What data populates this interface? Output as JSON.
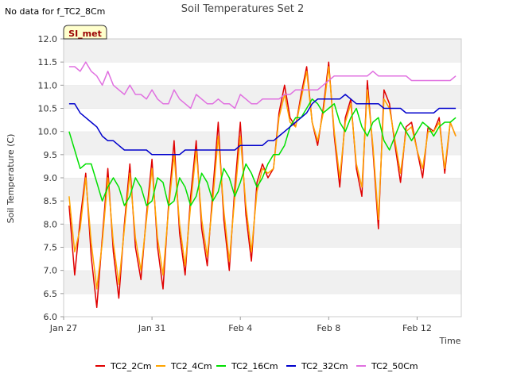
{
  "notice": "No data for f_TC2_8Cm",
  "badge": "SI_met",
  "chart_data": {
    "type": "line",
    "title": "Soil Temperatures Set 2",
    "xlabel": "Time",
    "ylabel": "Soil Temperature (C)",
    "xlim": [
      "2024-01-27",
      "2024-02-14"
    ],
    "ylim": [
      6.0,
      12.0
    ],
    "yticks": [
      "6.0",
      "6.5",
      "7.0",
      "7.5",
      "8.0",
      "8.5",
      "9.0",
      "9.5",
      "10.0",
      "10.5",
      "11.0",
      "11.5",
      "12.0"
    ],
    "xticks": [
      {
        "label": "Jan 27",
        "date": "2024-01-27"
      },
      {
        "label": "Jan 31",
        "date": "2024-01-31"
      },
      {
        "label": "Feb 4",
        "date": "2024-02-04"
      },
      {
        "label": "Feb 8",
        "date": "2024-02-08"
      },
      {
        "label": "Feb 12",
        "date": "2024-02-12"
      }
    ],
    "grid": "horizontal bands",
    "legend_position": "bottom",
    "colors": {
      "TC2_2Cm": "#e00000",
      "TC2_4Cm": "#ffa500",
      "TC2_16Cm": "#00e000",
      "TC2_32Cm": "#0000cc",
      "TC2_50Cm": "#e070e0"
    },
    "x": [
      "2024-01-27 06:00",
      "2024-01-27 12:00",
      "2024-01-27 18:00",
      "2024-01-28 00:00",
      "2024-01-28 06:00",
      "2024-01-28 12:00",
      "2024-01-28 18:00",
      "2024-01-29 00:00",
      "2024-01-29 06:00",
      "2024-01-29 12:00",
      "2024-01-29 18:00",
      "2024-01-30 00:00",
      "2024-01-30 06:00",
      "2024-01-30 12:00",
      "2024-01-30 18:00",
      "2024-01-31 00:00",
      "2024-01-31 06:00",
      "2024-01-31 12:00",
      "2024-01-31 18:00",
      "2024-02-01 00:00",
      "2024-02-01 06:00",
      "2024-02-01 12:00",
      "2024-02-01 18:00",
      "2024-02-02 00:00",
      "2024-02-02 06:00",
      "2024-02-02 12:00",
      "2024-02-02 18:00",
      "2024-02-03 00:00",
      "2024-02-03 06:00",
      "2024-02-03 12:00",
      "2024-02-03 18:00",
      "2024-02-04 00:00",
      "2024-02-04 06:00",
      "2024-02-04 12:00",
      "2024-02-04 18:00",
      "2024-02-05 00:00",
      "2024-02-05 06:00",
      "2024-02-05 12:00",
      "2024-02-05 18:00",
      "2024-02-06 00:00",
      "2024-02-06 06:00",
      "2024-02-06 12:00",
      "2024-02-06 18:00",
      "2024-02-07 00:00",
      "2024-02-07 06:00",
      "2024-02-07 12:00",
      "2024-02-07 18:00",
      "2024-02-08 00:00",
      "2024-02-08 06:00",
      "2024-02-08 12:00",
      "2024-02-08 18:00",
      "2024-02-09 00:00",
      "2024-02-09 06:00",
      "2024-02-09 12:00",
      "2024-02-09 18:00",
      "2024-02-10 00:00",
      "2024-02-10 06:00",
      "2024-02-10 12:00",
      "2024-02-10 18:00",
      "2024-02-11 00:00",
      "2024-02-11 06:00",
      "2024-02-11 12:00",
      "2024-02-11 18:00",
      "2024-02-12 00:00",
      "2024-02-12 06:00",
      "2024-02-12 12:00",
      "2024-02-12 18:00",
      "2024-02-13 00:00",
      "2024-02-13 06:00",
      "2024-02-13 12:00",
      "2024-02-13 18:00"
    ],
    "series": [
      {
        "name": "TC2_2Cm",
        "values": [
          8.4,
          6.9,
          8.1,
          9.1,
          7.3,
          6.2,
          7.7,
          9.2,
          7.4,
          6.4,
          8.0,
          9.3,
          7.5,
          6.8,
          8.2,
          9.4,
          7.5,
          6.6,
          8.4,
          9.8,
          7.8,
          6.9,
          8.6,
          9.8,
          7.9,
          7.1,
          8.7,
          10.2,
          8.1,
          7.0,
          8.8,
          10.2,
          8.2,
          7.2,
          8.9,
          9.3,
          9.0,
          9.2,
          10.4,
          11.0,
          10.3,
          10.1,
          10.8,
          11.4,
          10.2,
          9.7,
          10.5,
          11.5,
          9.9,
          8.8,
          10.3,
          10.7,
          9.2,
          8.6,
          11.1,
          9.6,
          7.9,
          10.9,
          10.6,
          9.7,
          8.9,
          10.1,
          10.2,
          9.6,
          9.0,
          10.1,
          10.0,
          10.3,
          9.1,
          10.2,
          9.9
        ]
      },
      {
        "name": "TC2_4Cm",
        "values": [
          8.6,
          7.4,
          7.9,
          9.0,
          7.6,
          6.6,
          7.6,
          9.0,
          7.6,
          6.7,
          7.9,
          9.1,
          7.7,
          7.0,
          8.1,
          9.2,
          7.7,
          6.9,
          8.3,
          9.5,
          8.0,
          7.1,
          8.4,
          9.6,
          8.1,
          7.3,
          8.5,
          9.9,
          8.3,
          7.2,
          8.6,
          9.9,
          8.4,
          7.4,
          8.7,
          9.2,
          9.1,
          9.2,
          10.3,
          10.8,
          10.2,
          10.1,
          10.7,
          11.3,
          10.2,
          9.8,
          10.4,
          11.4,
          10.0,
          9.0,
          10.2,
          10.6,
          9.3,
          8.8,
          10.9,
          9.7,
          8.1,
          10.7,
          10.5,
          9.8,
          9.1,
          10.0,
          10.1,
          9.6,
          9.2,
          10.0,
          10.0,
          10.2,
          9.2,
          10.2,
          9.9
        ]
      },
      {
        "name": "TC2_16Cm",
        "values": [
          10.0,
          9.6,
          9.2,
          9.3,
          9.3,
          8.9,
          8.5,
          8.8,
          9.0,
          8.8,
          8.4,
          8.6,
          9.0,
          8.8,
          8.4,
          8.5,
          9.0,
          8.9,
          8.4,
          8.5,
          9.0,
          8.8,
          8.4,
          8.6,
          9.1,
          8.9,
          8.5,
          8.7,
          9.2,
          9.0,
          8.6,
          8.9,
          9.3,
          9.1,
          8.8,
          9.0,
          9.3,
          9.5,
          9.5,
          9.7,
          10.1,
          10.3,
          10.3,
          10.5,
          10.7,
          10.6,
          10.4,
          10.5,
          10.6,
          10.2,
          10.0,
          10.3,
          10.5,
          10.1,
          9.9,
          10.2,
          10.3,
          9.8,
          9.6,
          9.9,
          10.2,
          10.0,
          9.8,
          10.0,
          10.2,
          10.1,
          9.9,
          10.1,
          10.2,
          10.2,
          10.3
        ]
      },
      {
        "name": "TC2_32Cm",
        "values": [
          10.6,
          10.6,
          10.4,
          10.3,
          10.2,
          10.1,
          9.9,
          9.8,
          9.8,
          9.7,
          9.6,
          9.6,
          9.6,
          9.6,
          9.6,
          9.5,
          9.5,
          9.5,
          9.5,
          9.5,
          9.5,
          9.6,
          9.6,
          9.6,
          9.6,
          9.6,
          9.6,
          9.6,
          9.6,
          9.6,
          9.6,
          9.7,
          9.7,
          9.7,
          9.7,
          9.7,
          9.8,
          9.8,
          9.9,
          10.0,
          10.1,
          10.2,
          10.3,
          10.4,
          10.6,
          10.7,
          10.7,
          10.7,
          10.7,
          10.7,
          10.8,
          10.7,
          10.6,
          10.6,
          10.6,
          10.6,
          10.6,
          10.5,
          10.5,
          10.5,
          10.5,
          10.4,
          10.4,
          10.4,
          10.4,
          10.4,
          10.4,
          10.5,
          10.5,
          10.5,
          10.5
        ]
      },
      {
        "name": "TC2_50Cm",
        "values": [
          11.4,
          11.4,
          11.3,
          11.5,
          11.3,
          11.2,
          11.0,
          11.3,
          11.0,
          10.9,
          10.8,
          11.0,
          10.8,
          10.8,
          10.7,
          10.9,
          10.7,
          10.6,
          10.6,
          10.9,
          10.7,
          10.6,
          10.5,
          10.8,
          10.7,
          10.6,
          10.6,
          10.7,
          10.6,
          10.6,
          10.5,
          10.8,
          10.7,
          10.6,
          10.6,
          10.7,
          10.7,
          10.7,
          10.7,
          10.8,
          10.8,
          10.9,
          10.9,
          10.9,
          10.9,
          10.9,
          11.0,
          11.1,
          11.2,
          11.2,
          11.2,
          11.2,
          11.2,
          11.2,
          11.2,
          11.3,
          11.2,
          11.2,
          11.2,
          11.2,
          11.2,
          11.2,
          11.1,
          11.1,
          11.1,
          11.1,
          11.1,
          11.1,
          11.1,
          11.1,
          11.2
        ]
      }
    ]
  }
}
